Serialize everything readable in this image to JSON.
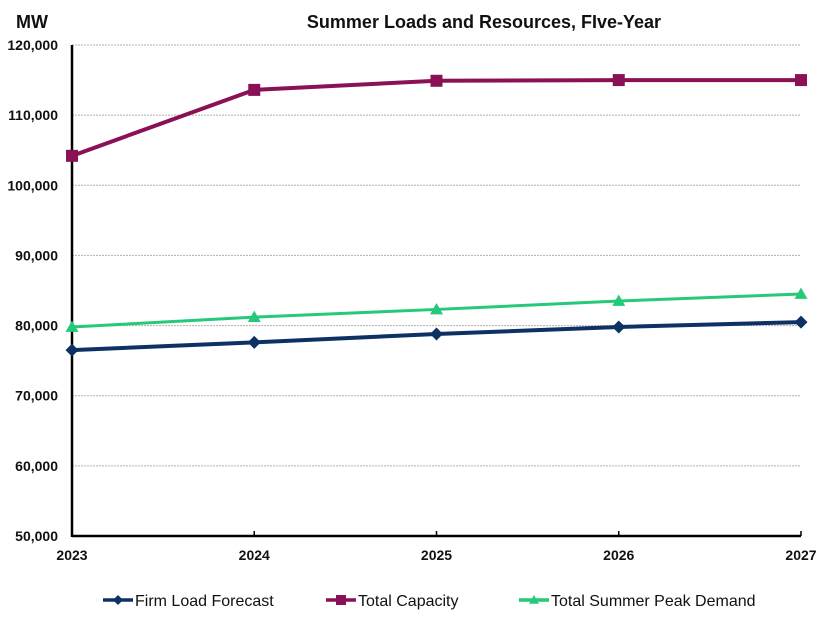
{
  "chart_data": {
    "type": "line",
    "title": "Summer Loads and Resources, FIve-Year",
    "ylabel": "MW",
    "xlabel": "",
    "x": [
      "2023",
      "2024",
      "2025",
      "2026",
      "2027"
    ],
    "ylim": [
      50000,
      120000
    ],
    "yticks": [
      50000,
      60000,
      70000,
      80000,
      90000,
      100000,
      110000,
      120000
    ],
    "ytick_labels": [
      "50,000",
      "60,000",
      "70,000",
      "80,000",
      "90,000",
      "100,000",
      "110,000",
      "120,000"
    ],
    "grid": true,
    "legend_position": "bottom",
    "series": [
      {
        "name": "Firm Load Forecast",
        "marker": "diamond",
        "color": "#0d3163",
        "values": [
          76500,
          77600,
          78800,
          79800,
          80500
        ]
      },
      {
        "name": "Total Capacity",
        "marker": "square",
        "color": "#8a1156",
        "values": [
          104200,
          113600,
          114900,
          115000,
          115000
        ]
      },
      {
        "name": "Total Summer Peak Demand",
        "marker": "triangle",
        "color": "#25c97a",
        "values": [
          79800,
          81200,
          82300,
          83500,
          84500
        ]
      }
    ]
  }
}
